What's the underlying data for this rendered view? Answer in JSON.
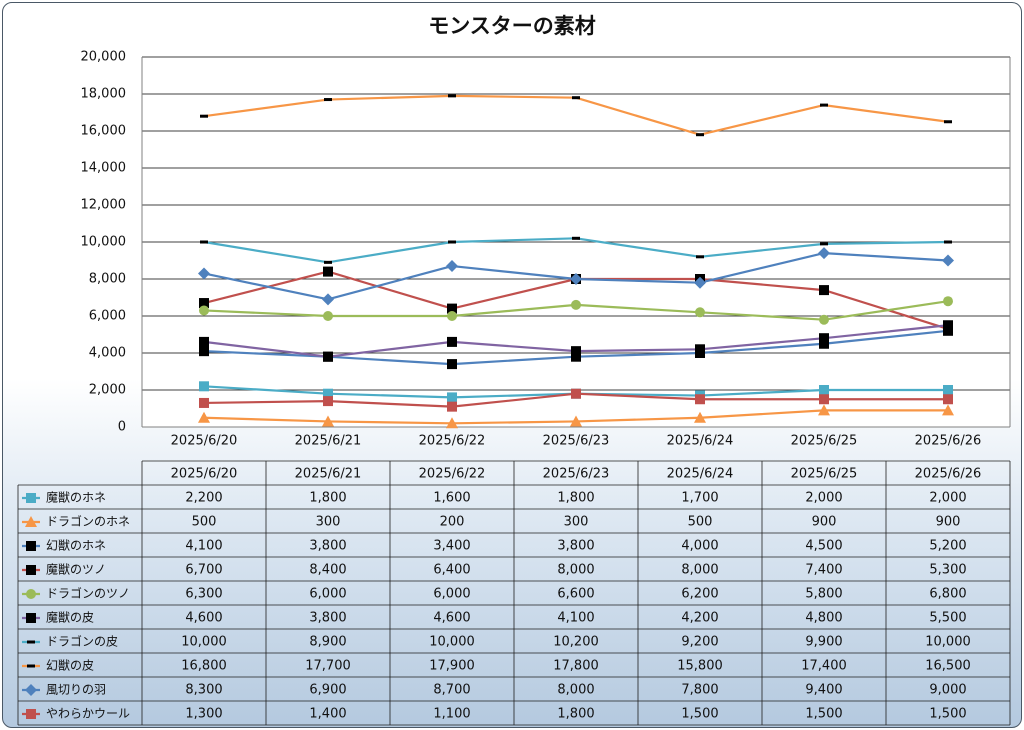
{
  "chart_data": {
    "type": "line",
    "title": "モンスターの素材",
    "categories": [
      "2025/6/20",
      "2025/6/21",
      "2025/6/22",
      "2025/6/23",
      "2025/6/24",
      "2025/6/25",
      "2025/6/26"
    ],
    "ylim": [
      0,
      20000
    ],
    "yticks": [
      "0",
      "2,000",
      "4,000",
      "6,000",
      "8,000",
      "10,000",
      "12,000",
      "14,000",
      "16,000",
      "18,000",
      "20,000"
    ],
    "grid": true,
    "legend": "data-table-below",
    "series": [
      {
        "name": "魔獣のホネ",
        "color": "#4bacc6",
        "marker": "square",
        "values": [
          2200,
          1800,
          1600,
          1800,
          1700,
          2000,
          2000
        ],
        "labels": [
          "2,200",
          "1,800",
          "1,600",
          "1,800",
          "1,700",
          "2,000",
          "2,000"
        ]
      },
      {
        "name": "ドラゴンのホネ",
        "color": "#f79646",
        "marker": "triangle",
        "values": [
          500,
          300,
          200,
          300,
          500,
          900,
          900
        ],
        "labels": [
          "500",
          "300",
          "200",
          "300",
          "500",
          "900",
          "900"
        ]
      },
      {
        "name": "幻獣のホネ",
        "color": "#4f81bd",
        "marker": "black-square",
        "values": [
          4100,
          3800,
          3400,
          3800,
          4000,
          4500,
          5200
        ],
        "labels": [
          "4,100",
          "3,800",
          "3,400",
          "3,800",
          "4,000",
          "4,500",
          "5,200"
        ]
      },
      {
        "name": "魔獣のツノ",
        "color": "#c0504d",
        "marker": "black-square",
        "values": [
          6700,
          8400,
          6400,
          8000,
          8000,
          7400,
          5300
        ],
        "labels": [
          "6,700",
          "8,400",
          "6,400",
          "8,000",
          "8,000",
          "7,400",
          "5,300"
        ]
      },
      {
        "name": "ドラゴンのツノ",
        "color": "#9bbb59",
        "marker": "circle",
        "values": [
          6300,
          6000,
          6000,
          6600,
          6200,
          5800,
          6800
        ],
        "labels": [
          "6,300",
          "6,000",
          "6,000",
          "6,600",
          "6,200",
          "5,800",
          "6,800"
        ]
      },
      {
        "name": "魔獣の皮",
        "color": "#8064a2",
        "marker": "black-square",
        "values": [
          4600,
          3800,
          4600,
          4100,
          4200,
          4800,
          5500
        ],
        "labels": [
          "4,600",
          "3,800",
          "4,600",
          "4,100",
          "4,200",
          "4,800",
          "5,500"
        ]
      },
      {
        "name": "ドラゴンの皮",
        "color": "#4bacc6",
        "marker": "dash",
        "values": [
          10000,
          8900,
          10000,
          10200,
          9200,
          9900,
          10000
        ],
        "labels": [
          "10,000",
          "8,900",
          "10,000",
          "10,200",
          "9,200",
          "9,900",
          "10,000"
        ]
      },
      {
        "name": "幻獣の皮",
        "color": "#f79646",
        "marker": "dash",
        "values": [
          16800,
          17700,
          17900,
          17800,
          15800,
          17400,
          16500
        ],
        "labels": [
          "16,800",
          "17,700",
          "17,900",
          "17,800",
          "15,800",
          "17,400",
          "16,500"
        ]
      },
      {
        "name": "風切りの羽",
        "color": "#4f81bd",
        "marker": "diamond",
        "values": [
          8300,
          6900,
          8700,
          8000,
          7800,
          9400,
          9000
        ],
        "labels": [
          "8,300",
          "6,900",
          "8,700",
          "8,000",
          "7,800",
          "9,400",
          "9,000"
        ]
      },
      {
        "name": "やわらかウール",
        "color": "#c0504d",
        "marker": "square",
        "values": [
          1300,
          1400,
          1100,
          1800,
          1500,
          1500,
          1500
        ],
        "labels": [
          "1,300",
          "1,400",
          "1,100",
          "1,800",
          "1,500",
          "1,500",
          "1,500"
        ]
      }
    ]
  }
}
